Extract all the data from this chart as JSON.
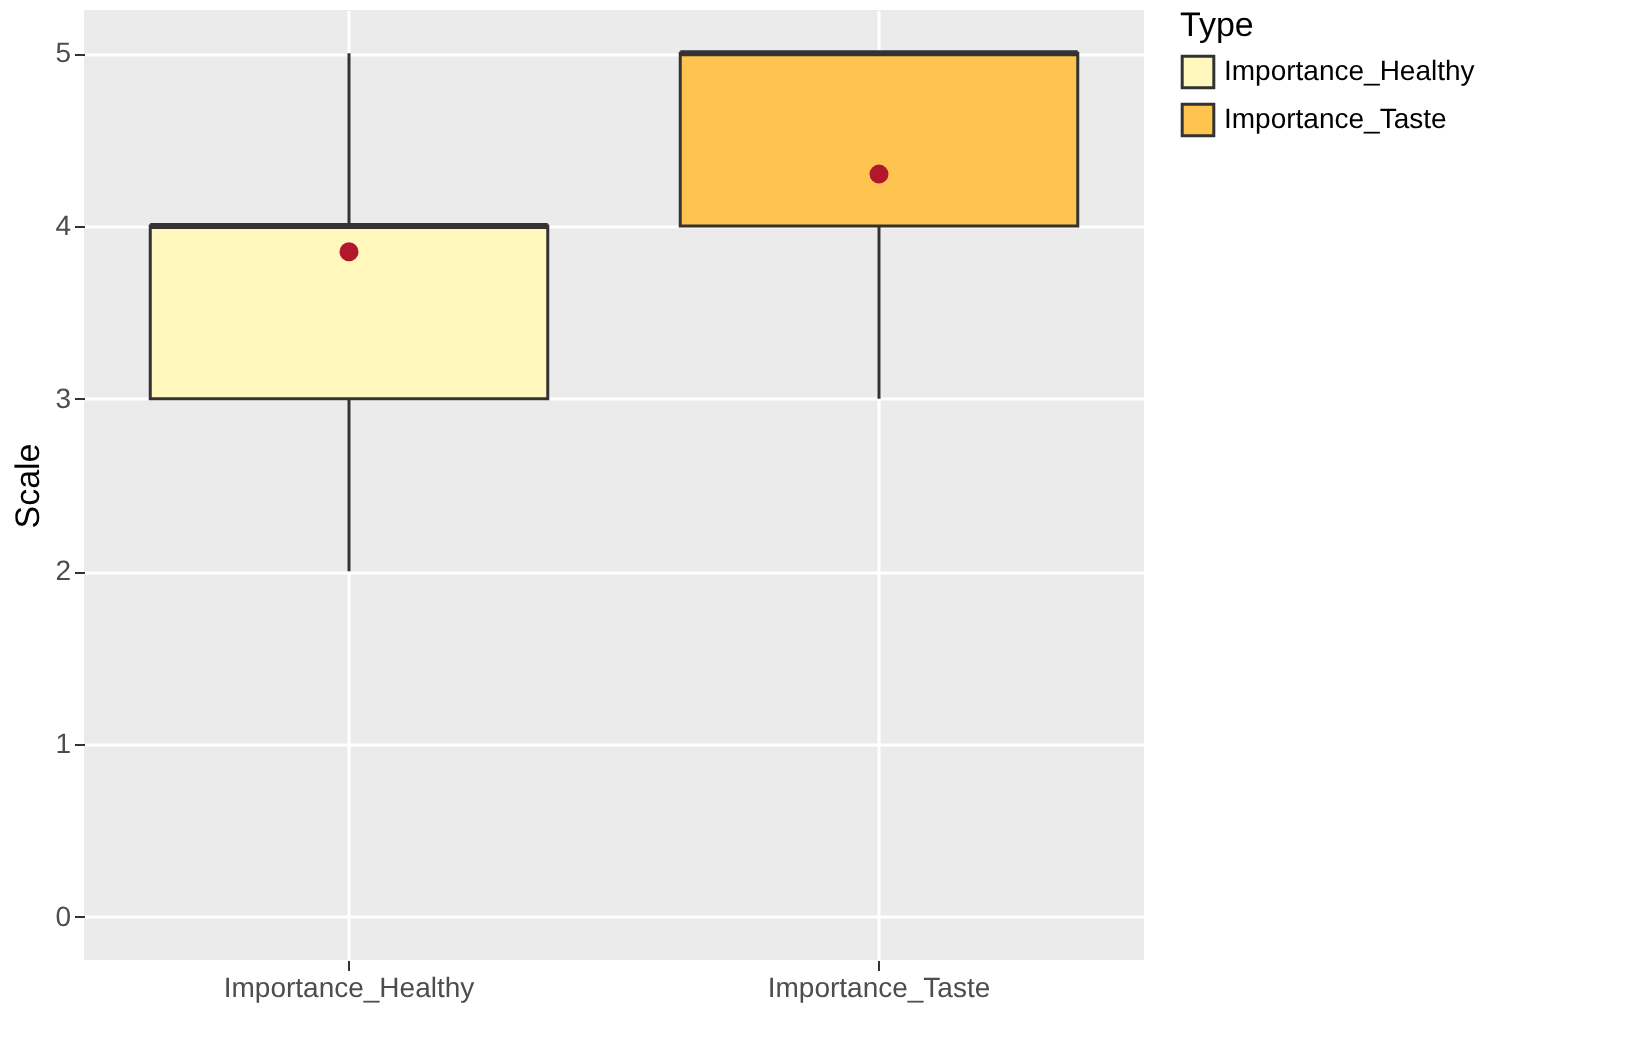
{
  "chart_data": {
    "type": "box",
    "categories": [
      "Importance_Healthy",
      "Importance_Taste"
    ],
    "series": [
      {
        "name": "Importance_Healthy",
        "color": "#fff7bc",
        "boxes": [
          {
            "low": 2,
            "q1": 3,
            "median": 4,
            "q3": 4,
            "high": 5,
            "mean": 3.85
          },
          null
        ]
      },
      {
        "name": "Importance_Taste",
        "color": "#fec44f",
        "boxes": [
          null,
          {
            "low": 3,
            "q1": 4,
            "median": 5,
            "q3": 5,
            "high": 5,
            "mean": 4.3
          }
        ]
      }
    ],
    "ylabel": "Scale",
    "legend_title": "Type",
    "legend": "right",
    "ylim": [
      -0.25,
      5.25
    ],
    "yticks": [
      0,
      1,
      2,
      3,
      4,
      5
    ],
    "grid": true
  }
}
